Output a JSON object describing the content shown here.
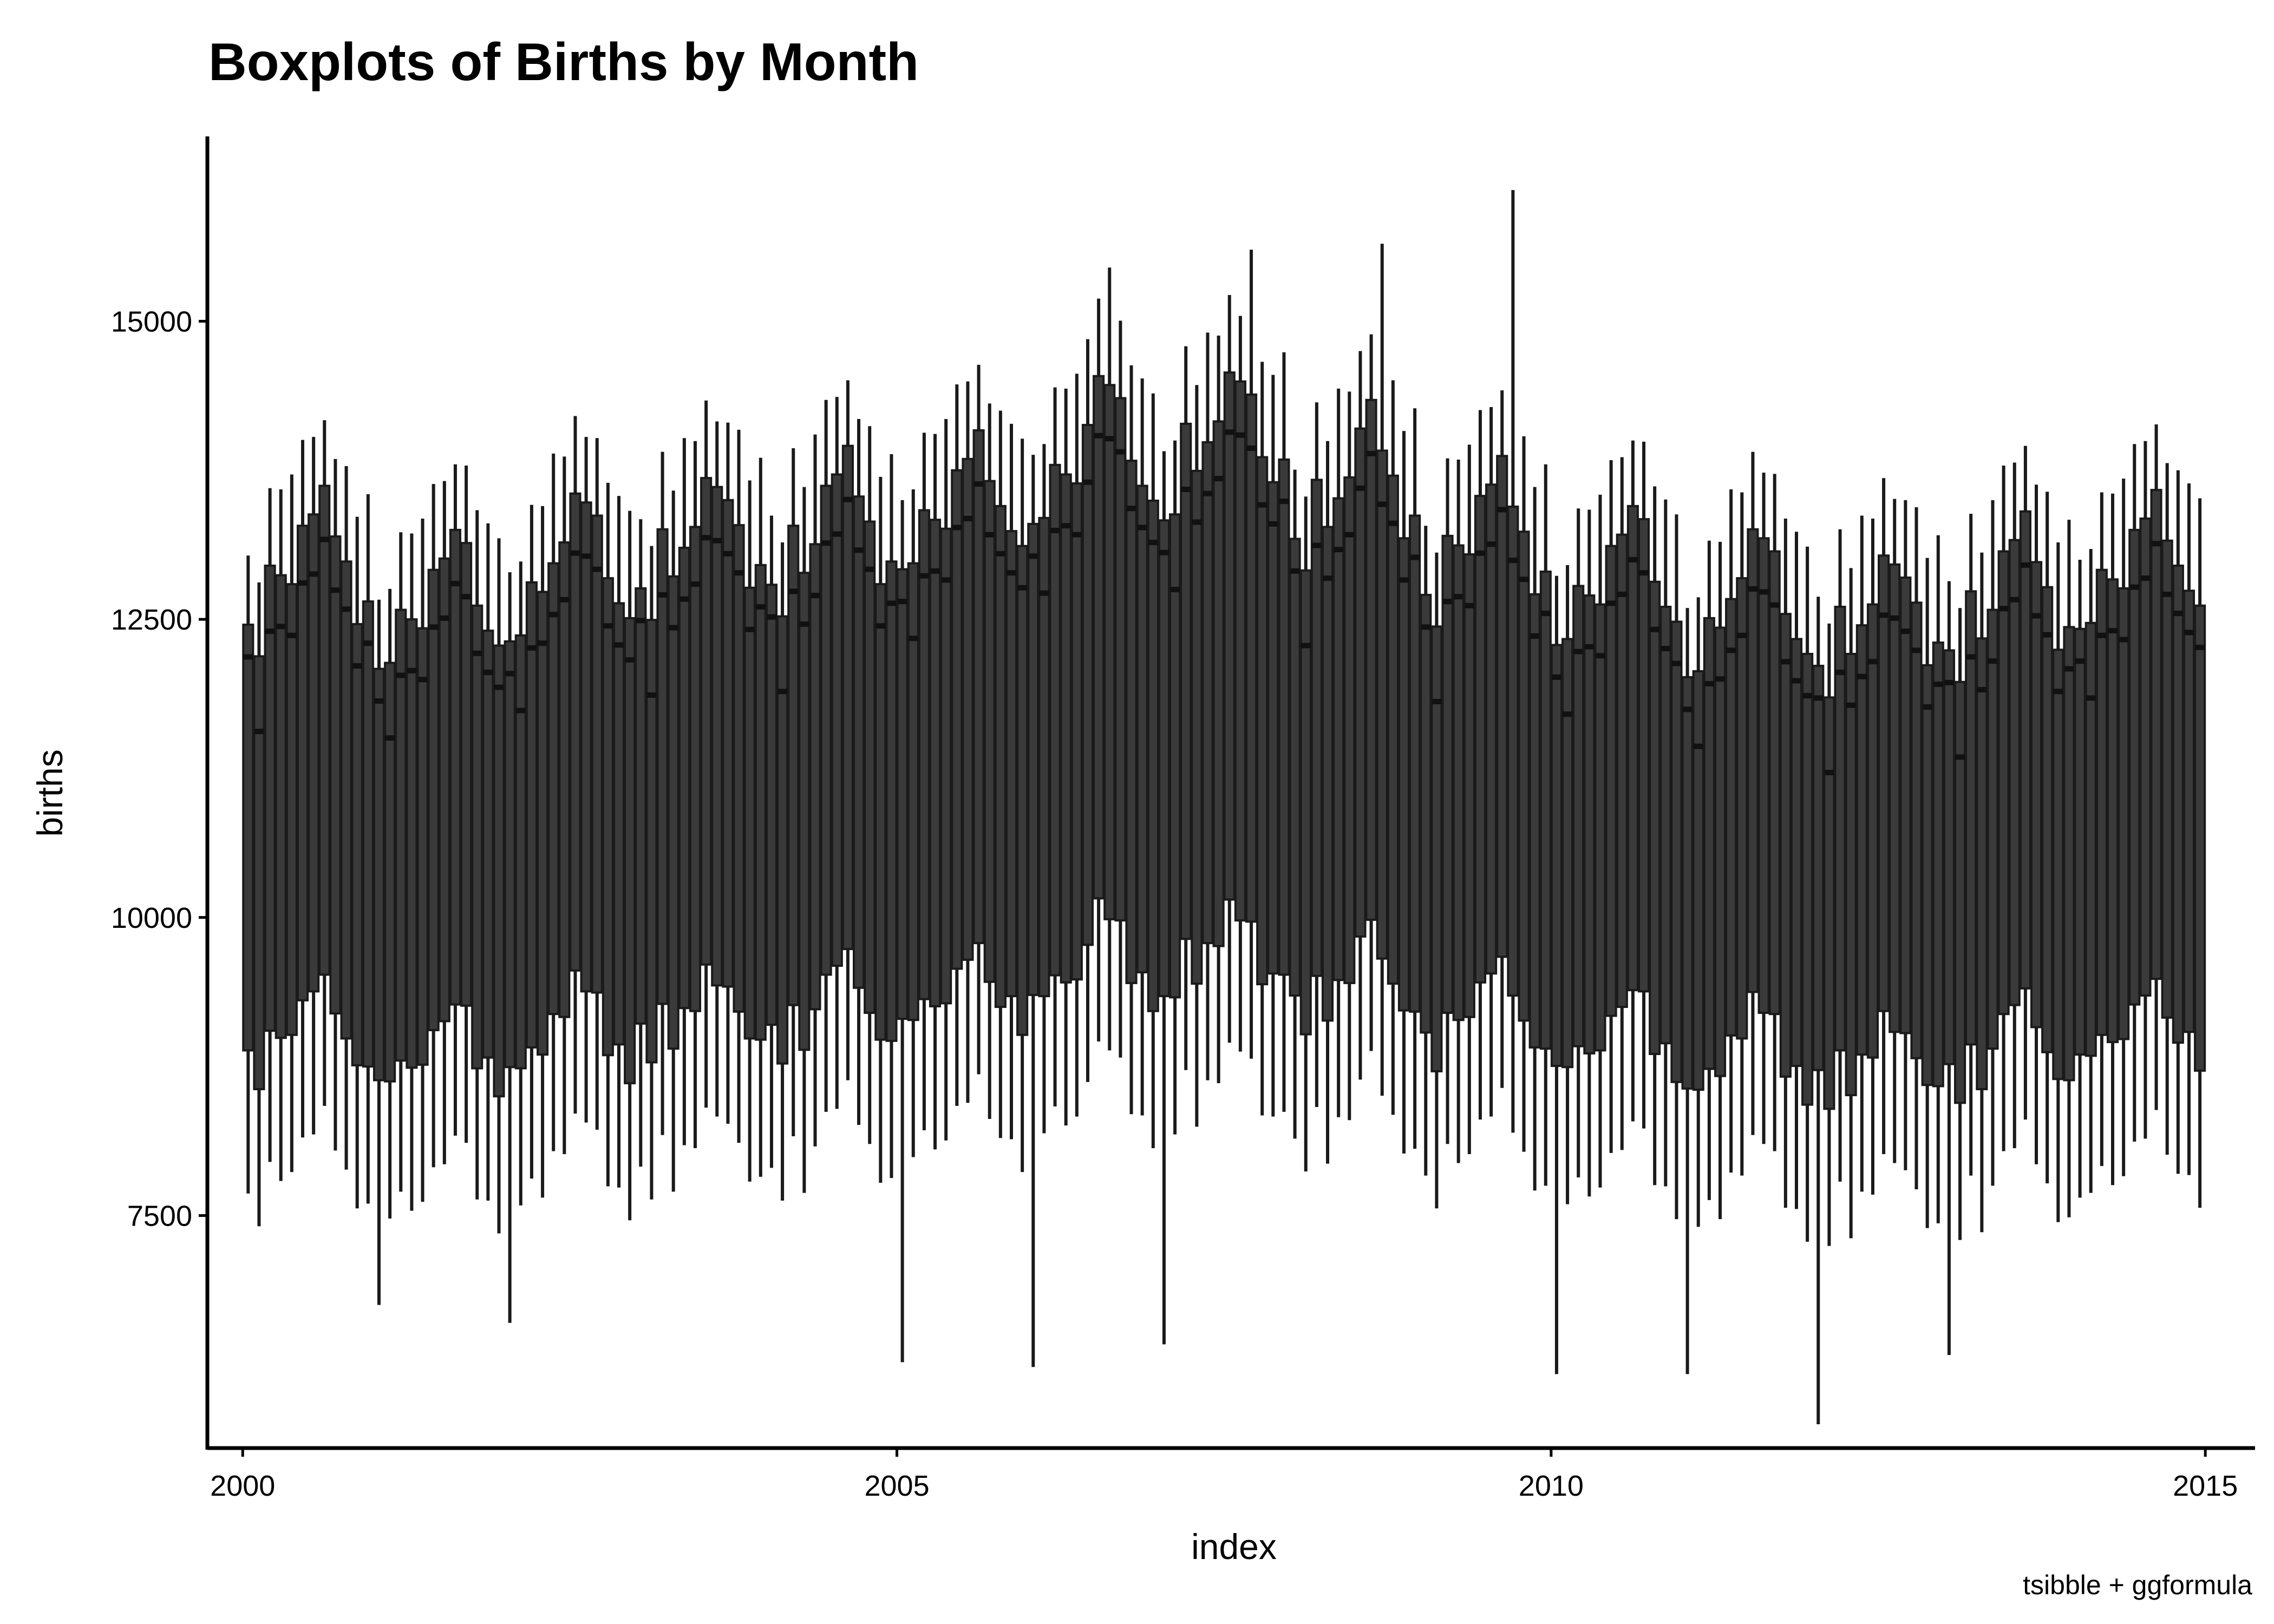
{
  "chart_data": {
    "type": "boxplot",
    "title": "Boxplots of Births by Month",
    "xlabel": "index",
    "ylabel": "births",
    "caption": "tsibble + ggformula",
    "xlim": [
      1999.73,
      2015.38
    ],
    "ylim": [
      5550,
      16550
    ],
    "x_ticks": [
      2000,
      2005,
      2010,
      2015
    ],
    "x_tick_labels": [
      "2000",
      "2005",
      "2010",
      "2015"
    ],
    "y_ticks": [
      7500,
      10000,
      12500,
      15000
    ],
    "y_tick_labels": [
      "7500",
      "10000",
      "12500",
      "15000"
    ],
    "grid": false,
    "legend": "none",
    "colors": {
      "box_fill": "#3a3a3a",
      "box_stroke": "#1a1a1a",
      "median": "#111111",
      "axis": "#000000"
    },
    "series": [
      {
        "name": "",
        "years": [
          2000,
          2001,
          2002,
          2003,
          2004,
          2005,
          2006,
          2007,
          2008,
          2009,
          2010,
          2011,
          2012,
          2013,
          2014
        ],
        "monthly_profile": {
          "q1": [
            8850,
            8700,
            9050,
            8850,
            9050,
            9200,
            9450,
            9450,
            9300,
            8950,
            8900,
            8750
          ],
          "q3": [
            12420,
            12330,
            12950,
            12730,
            12830,
            13180,
            13450,
            13550,
            13300,
            12950,
            12600,
            12650
          ],
          "median": [
            12150,
            11700,
            12400,
            12300,
            12400,
            12700,
            12950,
            13100,
            12850,
            12550,
            12250,
            12300
          ],
          "lower_whisker": [
            7650,
            7550,
            7950,
            7650,
            7900,
            8050,
            8250,
            8350,
            8150,
            7850,
            7700,
            7600
          ],
          "upper_whisker": [
            13000,
            12950,
            13600,
            13450,
            13750,
            13900,
            14100,
            14100,
            13950,
            13750,
            13500,
            13550
          ]
        },
        "year_offsets": [
          0,
          -300,
          0,
          200,
          300,
          500,
          950,
          1050,
          650,
          250,
          -100,
          -300,
          -450,
          -250,
          0
        ],
        "outlier_whiskers": [
          {
            "year": 2001,
            "month": 0,
            "low": 6750
          },
          {
            "year": 2002,
            "month": 0,
            "low": 6600
          },
          {
            "year": 2005,
            "month": 0,
            "low": 6270
          },
          {
            "year": 2006,
            "month": 0,
            "low": 6230
          },
          {
            "year": 2007,
            "month": 0,
            "low": 6420
          },
          {
            "year": 2010,
            "month": 0,
            "low": 6170
          },
          {
            "year": 2011,
            "month": 0,
            "low": 6170
          },
          {
            "year": 2012,
            "month": 0,
            "low": 5750
          },
          {
            "year": 2013,
            "month": 0,
            "low": 6330
          },
          {
            "year": 2009,
            "month": 8,
            "high": 16100
          },
          {
            "year": 2008,
            "month": 8,
            "high": 15650
          },
          {
            "year": 2007,
            "month": 8,
            "high": 15600
          },
          {
            "year": 2006,
            "month": 7,
            "high": 15450
          }
        ]
      }
    ]
  }
}
